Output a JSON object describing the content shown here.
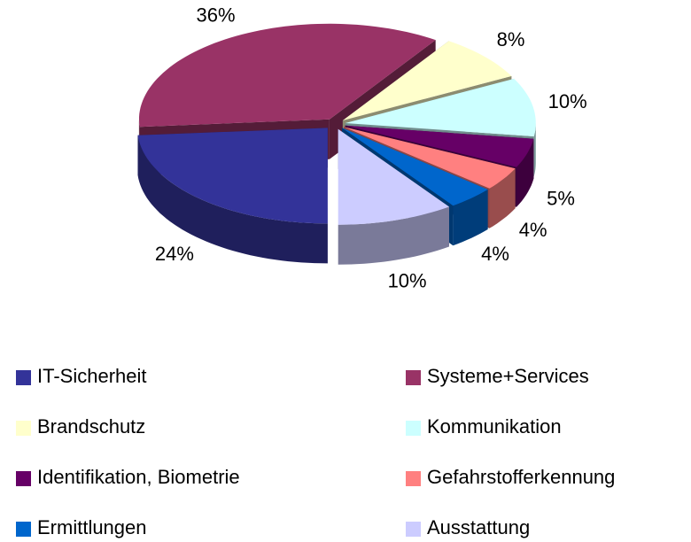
{
  "chart_data": {
    "type": "pie3d",
    "categories": [
      "IT-Sicherheit",
      "Systeme+Services",
      "Brandschutz",
      "Kommunikation",
      "Identifikation, Biometrie",
      "Gefahrstofferkennung",
      "Ermittlungen",
      "Ausstattung"
    ],
    "values": [
      24,
      36,
      8,
      10,
      5,
      4,
      4,
      10
    ],
    "value_labels": [
      "24%",
      "36%",
      "8%",
      "10%",
      "5%",
      "4%",
      "4%",
      "10%"
    ],
    "colors": [
      "#333399",
      "#993366",
      "#ffffcc",
      "#ccffff",
      "#660066",
      "#ff8080",
      "#0066cc",
      "#ccccff"
    ],
    "legend": "bottom"
  }
}
